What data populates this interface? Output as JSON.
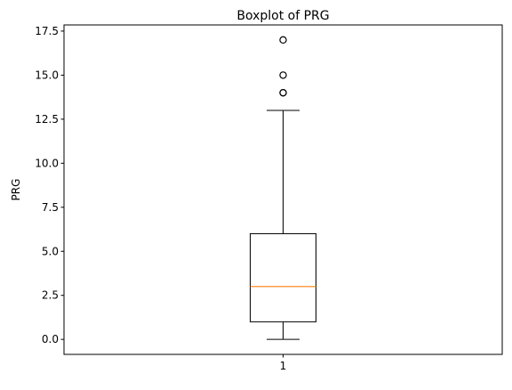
{
  "chart_data": {
    "type": "boxplot",
    "title": "Boxplot of PRG",
    "xlabel": "",
    "ylabel": "PRG",
    "categories": [
      "1"
    ],
    "ylim": [
      -0.85,
      17.85
    ],
    "yticks": [
      0.0,
      2.5,
      5.0,
      7.5,
      10.0,
      12.5,
      15.0,
      17.5
    ],
    "ytick_labels": [
      "0.0",
      "2.5",
      "5.0",
      "7.5",
      "10.0",
      "12.5",
      "15.0",
      "17.5"
    ],
    "boxes": [
      {
        "category": "1",
        "whisker_low": 0,
        "q1": 1,
        "median": 3,
        "q3": 6,
        "whisker_high": 13,
        "outliers": [
          14,
          14,
          15,
          17
        ]
      }
    ],
    "grid": false,
    "colors": {
      "box": "#000000",
      "median": "#ff7f0e",
      "outlier_edge": "#000000",
      "background": "#ffffff"
    }
  }
}
